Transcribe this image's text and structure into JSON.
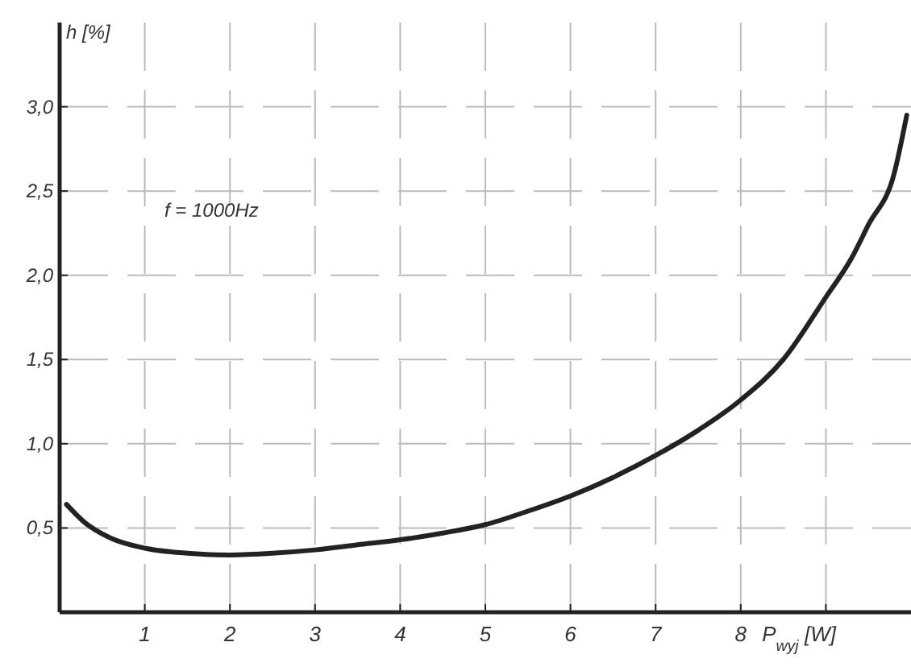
{
  "chart_data": {
    "type": "line",
    "xlabel": "P$_{wyj}$ [W]",
    "ylabel": "h [%]",
    "annotations": [
      "f = 1000Hz"
    ],
    "x": [
      0.08,
      0.3,
      0.6,
      1,
      1.5,
      2,
      2.5,
      3,
      3.5,
      4,
      4.5,
      5,
      5.5,
      6,
      6.5,
      7,
      7.5,
      8,
      8.5,
      9,
      9.3,
      9.5,
      9.8,
      9.95
    ],
    "series": [
      {
        "color": "#222222",
        "values": [
          0.64,
          0.53,
          0.44,
          0.38,
          0.35,
          0.34,
          0.35,
          0.37,
          0.4,
          0.43,
          0.47,
          0.52,
          0.6,
          0.69,
          0.8,
          0.93,
          1.08,
          1.26,
          1.5,
          1.87,
          2.1,
          2.3,
          2.6,
          2.95
        ]
      }
    ],
    "xlim": [
      0,
      10
    ],
    "ylim": [
      0,
      3.5
    ],
    "xticks": [
      1,
      2,
      3,
      4,
      5,
      6,
      7,
      8,
      {
        "value": 9,
        "label": null
      }
    ],
    "yticks": [
      {
        "value": 0.5,
        "label": "0,5"
      },
      {
        "value": 1,
        "label": "1,0"
      },
      {
        "value": 1.5,
        "label": "1,5"
      },
      {
        "value": 2,
        "label": "2,0"
      },
      {
        "value": 2.5,
        "label": "2,5"
      },
      {
        "value": 3,
        "label": "3,0"
      }
    ],
    "grid": true,
    "marker": "none",
    "line_style": "solid"
  }
}
